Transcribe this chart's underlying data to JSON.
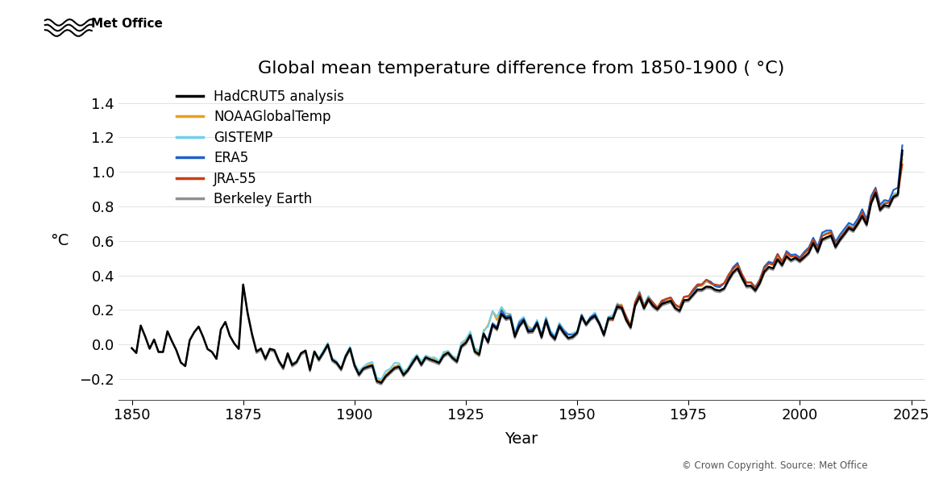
{
  "title": "Global mean temperature difference from 1850-1900 ( °C)",
  "ylabel": "°C",
  "xlabel": "Year",
  "copyright": "© Crown Copyright. Source: Met Office",
  "ylim": [
    -0.32,
    1.52
  ],
  "xlim": [
    1847,
    2028
  ],
  "yticks": [
    -0.2,
    0.0,
    0.2,
    0.4,
    0.6,
    0.8,
    1.0,
    1.2,
    1.4
  ],
  "xticks": [
    1850,
    1875,
    1900,
    1925,
    1950,
    1975,
    2000,
    2025
  ],
  "series_colors": {
    "HadCRUT5 analysis": "#000000",
    "NOAAGlobalTemp": "#E8A020",
    "GISTEMP": "#70D0E8",
    "ERA5": "#2060C8",
    "JRA-55": "#C84010",
    "Berkeley Earth": "#909090"
  },
  "hadcrut5": [
    -0.022,
    -0.05,
    0.109,
    0.046,
    -0.025,
    0.028,
    -0.044,
    -0.044,
    0.076,
    0.019,
    -0.034,
    -0.105,
    -0.126,
    0.024,
    0.07,
    0.103,
    0.044,
    -0.027,
    -0.044,
    -0.084,
    0.087,
    0.13,
    0.05,
    0.005,
    -0.026,
    0.347,
    0.183,
    0.059,
    -0.041,
    -0.024,
    -0.083,
    -0.026,
    -0.033,
    -0.095,
    -0.136,
    -0.052,
    -0.119,
    -0.101,
    -0.051,
    -0.036,
    -0.148,
    -0.041,
    -0.088,
    -0.047,
    -0.001,
    -0.089,
    -0.107,
    -0.143,
    -0.07,
    -0.023,
    -0.121,
    -0.175,
    -0.14,
    -0.13,
    -0.122,
    -0.213,
    -0.223,
    -0.185,
    -0.161,
    -0.137,
    -0.129,
    -0.177,
    -0.149,
    -0.108,
    -0.07,
    -0.117,
    -0.075,
    -0.087,
    -0.096,
    -0.107,
    -0.064,
    -0.048,
    -0.078,
    -0.099,
    -0.011,
    0.009,
    0.054,
    -0.041,
    -0.059,
    0.063,
    0.013,
    0.113,
    0.09,
    0.177,
    0.15,
    0.157,
    0.045,
    0.107,
    0.139,
    0.074,
    0.077,
    0.122,
    0.042,
    0.138,
    0.059,
    0.031,
    0.105,
    0.067,
    0.037,
    0.044,
    0.068,
    0.162,
    0.116,
    0.149,
    0.165,
    0.12,
    0.055,
    0.148,
    0.15,
    0.218,
    0.211,
    0.143,
    0.099,
    0.225,
    0.278,
    0.21,
    0.261,
    0.224,
    0.204,
    0.234,
    0.244,
    0.252,
    0.211,
    0.195,
    0.256,
    0.259,
    0.288,
    0.318,
    0.318,
    0.335,
    0.333,
    0.317,
    0.312,
    0.325,
    0.375,
    0.417,
    0.442,
    0.387,
    0.339,
    0.34,
    0.313,
    0.356,
    0.421,
    0.449,
    0.441,
    0.494,
    0.46,
    0.511,
    0.489,
    0.502,
    0.484,
    0.507,
    0.532,
    0.588,
    0.537,
    0.608,
    0.621,
    0.631,
    0.565,
    0.607,
    0.64,
    0.675,
    0.661,
    0.699,
    0.744,
    0.695,
    0.82,
    0.879,
    0.78,
    0.807,
    0.801,
    0.855,
    0.869,
    1.124
  ],
  "noaa": [
    null,
    null,
    null,
    null,
    null,
    null,
    null,
    null,
    null,
    null,
    null,
    null,
    null,
    null,
    null,
    null,
    null,
    null,
    null,
    null,
    null,
    null,
    null,
    null,
    null,
    null,
    null,
    null,
    null,
    null,
    -0.083,
    -0.026,
    -0.033,
    -0.095,
    -0.136,
    -0.052,
    -0.119,
    -0.101,
    -0.051,
    -0.036,
    -0.148,
    -0.041,
    -0.088,
    -0.047,
    -0.001,
    -0.089,
    -0.107,
    -0.143,
    -0.07,
    -0.023,
    -0.111,
    -0.165,
    -0.13,
    -0.12,
    -0.112,
    -0.203,
    -0.213,
    -0.175,
    -0.151,
    -0.127,
    -0.119,
    -0.167,
    -0.139,
    -0.098,
    -0.06,
    -0.107,
    -0.065,
    -0.077,
    -0.086,
    -0.097,
    -0.054,
    -0.038,
    -0.068,
    -0.089,
    -0.001,
    0.019,
    0.064,
    -0.031,
    -0.049,
    0.073,
    0.113,
    0.193,
    0.14,
    0.207,
    0.16,
    0.177,
    0.065,
    0.127,
    0.149,
    0.104,
    0.087,
    0.132,
    0.052,
    0.148,
    0.069,
    0.041,
    0.115,
    0.087,
    0.057,
    0.064,
    0.068,
    0.172,
    0.116,
    0.159,
    0.175,
    0.12,
    0.055,
    0.158,
    0.16,
    0.228,
    0.231,
    0.153,
    0.099,
    0.235,
    0.298,
    0.22,
    0.271,
    0.234,
    0.214,
    0.244,
    0.254,
    0.262,
    0.221,
    0.215,
    0.276,
    0.279,
    0.308,
    0.338,
    0.338,
    0.365,
    0.353,
    0.337,
    0.332,
    0.355,
    0.395,
    0.437,
    0.462,
    0.397,
    0.359,
    0.36,
    0.323,
    0.366,
    0.441,
    0.469,
    0.461,
    0.514,
    0.47,
    0.521,
    0.509,
    0.512,
    0.494,
    0.527,
    0.552,
    0.608,
    0.547,
    0.628,
    0.641,
    0.641,
    0.575,
    0.627,
    0.65,
    0.685,
    0.671,
    0.709,
    0.764,
    0.715,
    0.84,
    0.889,
    0.79,
    0.827,
    0.821,
    0.865,
    0.879,
    1.074
  ],
  "gistemp": [
    null,
    null,
    null,
    null,
    null,
    null,
    null,
    null,
    null,
    null,
    null,
    null,
    null,
    null,
    null,
    null,
    null,
    null,
    null,
    null,
    null,
    null,
    null,
    null,
    null,
    null,
    null,
    null,
    null,
    null,
    -0.083,
    -0.026,
    -0.033,
    -0.095,
    -0.136,
    -0.052,
    -0.109,
    -0.101,
    -0.051,
    -0.036,
    -0.138,
    -0.041,
    -0.078,
    -0.037,
    0.009,
    -0.079,
    -0.097,
    -0.143,
    -0.06,
    -0.013,
    -0.111,
    -0.155,
    -0.13,
    -0.11,
    -0.102,
    -0.193,
    -0.203,
    -0.155,
    -0.141,
    -0.107,
    -0.109,
    -0.157,
    -0.139,
    -0.088,
    -0.06,
    -0.097,
    -0.065,
    -0.077,
    -0.076,
    -0.097,
    -0.044,
    -0.038,
    -0.068,
    -0.079,
    0.009,
    0.029,
    0.074,
    -0.021,
    -0.039,
    0.083,
    0.103,
    0.193,
    0.16,
    0.217,
    0.18,
    0.177,
    0.065,
    0.137,
    0.159,
    0.094,
    0.087,
    0.142,
    0.052,
    0.158,
    0.079,
    0.051,
    0.125,
    0.087,
    0.057,
    0.064,
    0.078,
    0.172,
    0.126,
    0.159,
    0.185,
    0.13,
    0.065,
    0.158,
    0.17,
    0.238,
    0.221,
    0.163,
    0.109,
    0.245,
    0.308,
    0.23,
    0.281,
    0.244,
    0.214,
    0.254,
    0.264,
    0.272,
    0.231,
    0.215,
    0.276,
    0.279,
    0.308,
    0.348,
    0.348,
    0.365,
    0.363,
    0.337,
    0.332,
    0.355,
    0.405,
    0.447,
    0.472,
    0.397,
    0.359,
    0.36,
    0.323,
    0.376,
    0.441,
    0.479,
    0.471,
    0.524,
    0.48,
    0.531,
    0.509,
    0.512,
    0.494,
    0.527,
    0.552,
    0.618,
    0.557,
    0.638,
    0.651,
    0.651,
    0.585,
    0.627,
    0.66,
    0.695,
    0.681,
    0.719,
    0.774,
    0.715,
    0.85,
    0.899,
    0.8,
    0.827,
    0.821,
    0.875,
    0.879,
    1.104
  ],
  "era5": [
    null,
    null,
    null,
    null,
    null,
    null,
    null,
    null,
    null,
    null,
    null,
    null,
    null,
    null,
    null,
    null,
    null,
    null,
    null,
    null,
    null,
    null,
    null,
    null,
    null,
    null,
    null,
    null,
    null,
    null,
    null,
    null,
    null,
    null,
    null,
    null,
    null,
    null,
    null,
    null,
    null,
    null,
    null,
    null,
    null,
    null,
    null,
    null,
    null,
    null,
    null,
    null,
    null,
    null,
    null,
    null,
    null,
    null,
    null,
    null,
    null,
    null,
    null,
    null,
    null,
    null,
    null,
    null,
    null,
    null,
    null,
    null,
    null,
    null,
    null,
    null,
    null,
    null,
    null,
    null,
    0.033,
    0.123,
    0.1,
    0.197,
    0.16,
    0.167,
    0.055,
    0.127,
    0.149,
    0.084,
    0.087,
    0.132,
    0.052,
    0.148,
    0.069,
    0.041,
    0.115,
    0.077,
    0.057,
    0.054,
    0.068,
    0.172,
    0.116,
    0.159,
    0.175,
    0.12,
    0.055,
    0.158,
    0.15,
    0.228,
    0.221,
    0.153,
    0.099,
    0.235,
    0.298,
    0.22,
    0.271,
    0.234,
    0.214,
    0.244,
    0.264,
    0.272,
    0.231,
    0.215,
    0.276,
    0.279,
    0.308,
    0.338,
    0.348,
    0.375,
    0.363,
    0.337,
    0.332,
    0.355,
    0.395,
    0.447,
    0.472,
    0.407,
    0.359,
    0.36,
    0.333,
    0.376,
    0.451,
    0.479,
    0.471,
    0.524,
    0.48,
    0.541,
    0.519,
    0.522,
    0.504,
    0.537,
    0.562,
    0.618,
    0.567,
    0.648,
    0.661,
    0.661,
    0.595,
    0.637,
    0.67,
    0.705,
    0.691,
    0.729,
    0.784,
    0.725,
    0.86,
    0.909,
    0.81,
    0.837,
    0.831,
    0.895,
    0.909,
    1.154
  ],
  "jra55": [
    null,
    null,
    null,
    null,
    null,
    null,
    null,
    null,
    null,
    null,
    null,
    null,
    null,
    null,
    null,
    null,
    null,
    null,
    null,
    null,
    null,
    null,
    null,
    null,
    null,
    null,
    null,
    null,
    null,
    null,
    null,
    null,
    null,
    null,
    null,
    null,
    null,
    null,
    null,
    null,
    null,
    null,
    null,
    null,
    null,
    null,
    null,
    null,
    null,
    null,
    null,
    null,
    null,
    null,
    null,
    null,
    null,
    null,
    null,
    null,
    null,
    null,
    null,
    null,
    null,
    null,
    null,
    null,
    null,
    null,
    null,
    null,
    null,
    null,
    null,
    null,
    null,
    null,
    null,
    null,
    null,
    null,
    null,
    null,
    null,
    null,
    null,
    null,
    null,
    null,
    null,
    null,
    null,
    null,
    null,
    null,
    null,
    null,
    null,
    null,
    null,
    null,
    null,
    null,
    null,
    null,
    null,
    null,
    0.14,
    0.228,
    0.221,
    0.163,
    0.109,
    0.245,
    0.298,
    0.22,
    0.271,
    0.244,
    0.214,
    0.254,
    0.264,
    0.272,
    0.231,
    0.215,
    0.276,
    0.279,
    0.318,
    0.348,
    0.348,
    0.375,
    0.353,
    0.347,
    0.342,
    0.355,
    0.405,
    0.437,
    0.462,
    0.407,
    0.359,
    0.36,
    0.323,
    0.376,
    0.441,
    0.469,
    0.461,
    0.524,
    0.48,
    0.531,
    0.509,
    0.512,
    0.494,
    0.527,
    0.552,
    0.608,
    0.547,
    0.628,
    0.641,
    0.651,
    0.575,
    0.617,
    0.65,
    0.685,
    0.671,
    0.709,
    0.764,
    0.705,
    0.84,
    0.899,
    0.79,
    0.817,
    0.821,
    0.855,
    0.869,
    1.044
  ],
  "berkeley": [
    -0.022,
    -0.05,
    0.109,
    0.046,
    -0.025,
    0.028,
    -0.044,
    -0.044,
    0.076,
    0.019,
    -0.034,
    -0.105,
    -0.126,
    0.024,
    0.07,
    0.103,
    0.044,
    -0.027,
    -0.044,
    -0.084,
    0.087,
    0.13,
    0.05,
    0.005,
    -0.026,
    0.347,
    0.173,
    0.049,
    -0.051,
    -0.034,
    -0.093,
    -0.036,
    -0.043,
    -0.105,
    -0.146,
    -0.062,
    -0.129,
    -0.111,
    -0.061,
    -0.046,
    -0.158,
    -0.051,
    -0.098,
    -0.057,
    -0.011,
    -0.099,
    -0.117,
    -0.153,
    -0.08,
    -0.033,
    -0.131,
    -0.185,
    -0.15,
    -0.14,
    -0.132,
    -0.223,
    -0.233,
    -0.195,
    -0.171,
    -0.147,
    -0.139,
    -0.187,
    -0.159,
    -0.118,
    -0.08,
    -0.127,
    -0.085,
    -0.097,
    -0.106,
    -0.117,
    -0.074,
    -0.058,
    -0.088,
    -0.109,
    -0.021,
    -0.001,
    0.044,
    -0.051,
    -0.069,
    0.053,
    0.003,
    0.103,
    0.08,
    0.167,
    0.14,
    0.147,
    0.035,
    0.097,
    0.129,
    0.064,
    0.067,
    0.112,
    0.032,
    0.128,
    0.049,
    0.021,
    0.095,
    0.057,
    0.027,
    0.034,
    0.058,
    0.152,
    0.106,
    0.139,
    0.155,
    0.11,
    0.045,
    0.138,
    0.14,
    0.208,
    0.201,
    0.133,
    0.089,
    0.215,
    0.268,
    0.2,
    0.251,
    0.214,
    0.194,
    0.224,
    0.234,
    0.242,
    0.201,
    0.185,
    0.246,
    0.249,
    0.278,
    0.308,
    0.308,
    0.325,
    0.323,
    0.307,
    0.302,
    0.315,
    0.365,
    0.407,
    0.432,
    0.377,
    0.329,
    0.33,
    0.303,
    0.346,
    0.411,
    0.439,
    0.431,
    0.484,
    0.45,
    0.501,
    0.479,
    0.492,
    0.474,
    0.497,
    0.522,
    0.578,
    0.527,
    0.598,
    0.611,
    0.621,
    0.555,
    0.597,
    0.63,
    0.665,
    0.651,
    0.689,
    0.734,
    0.685,
    0.81,
    0.869,
    0.77,
    0.797,
    0.791,
    0.845,
    0.859,
    1.104
  ]
}
